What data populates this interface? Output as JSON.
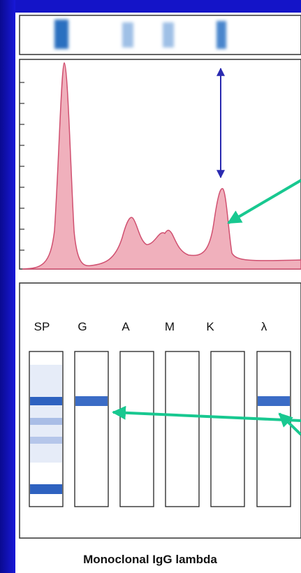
{
  "lanes": {
    "labels": [
      "SP",
      "G",
      "A",
      "M",
      "K",
      "λ"
    ]
  },
  "caption": "Monoclonal IgG lambda"
}
